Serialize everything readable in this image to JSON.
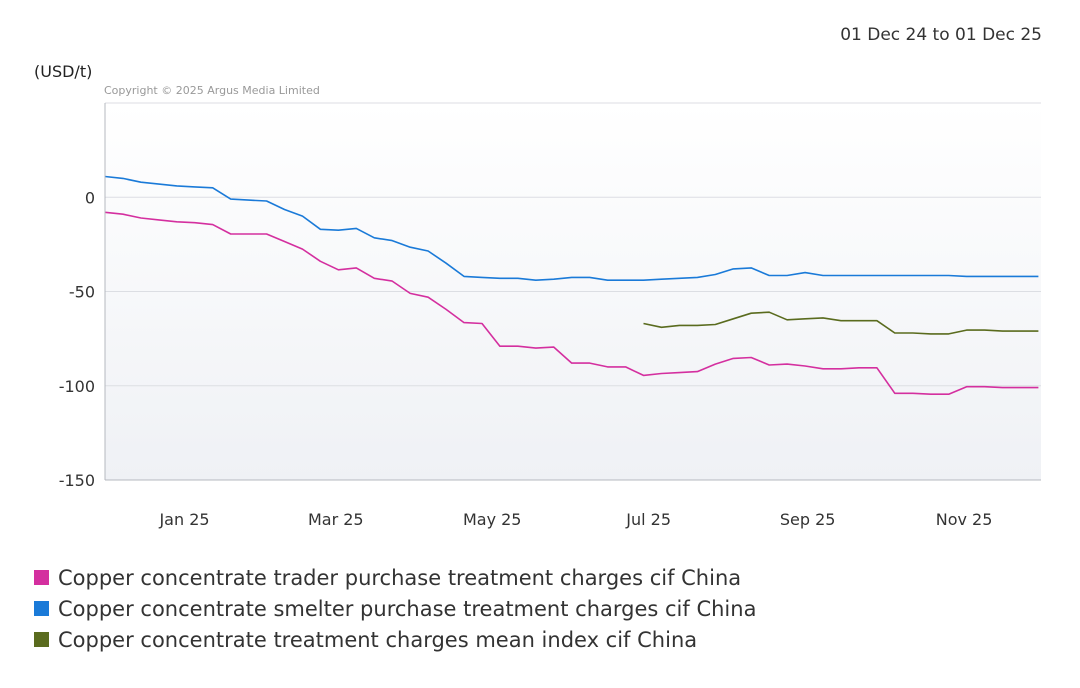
{
  "header": {
    "date_range": "01 Dec 24 to 01 Dec 25",
    "unit_label": "(USD/t)",
    "copyright": "Copyright © 2025 Argus Media Limited"
  },
  "chart_data": {
    "type": "line",
    "title": "",
    "xlabel": "",
    "ylabel": "(USD/t)",
    "ylim": [
      -150,
      50
    ],
    "yticks": [
      0,
      -50,
      -100,
      -150
    ],
    "ytick_labels": [
      "0",
      "-50",
      "-100",
      "-150"
    ],
    "xlim": [
      "2024-12-01",
      "2025-12-01"
    ],
    "xticks": [
      {
        "date": "2025-01-01",
        "label": "Jan 25"
      },
      {
        "date": "2025-03-01",
        "label": "Mar 25"
      },
      {
        "date": "2025-05-01",
        "label": "May 25"
      },
      {
        "date": "2025-07-01",
        "label": "Jul 25"
      },
      {
        "date": "2025-09-01",
        "label": "Sep 25"
      },
      {
        "date": "2025-11-01",
        "label": "Nov 25"
      }
    ],
    "grid": true,
    "legend_position": "bottom",
    "series": [
      {
        "name": "Copper concentrate trader purchase treatment charges cif China",
        "color": "#d42f9f",
        "x": [
          "2024-12-01",
          "2024-12-08",
          "2024-12-15",
          "2024-12-22",
          "2024-12-29",
          "2025-01-05",
          "2025-01-12",
          "2025-01-19",
          "2025-01-26",
          "2025-02-02",
          "2025-02-09",
          "2025-02-16",
          "2025-02-23",
          "2025-03-02",
          "2025-03-09",
          "2025-03-16",
          "2025-03-23",
          "2025-03-30",
          "2025-04-06",
          "2025-04-13",
          "2025-04-20",
          "2025-04-27",
          "2025-05-04",
          "2025-05-11",
          "2025-05-18",
          "2025-05-25",
          "2025-06-01",
          "2025-06-08",
          "2025-06-15",
          "2025-06-22",
          "2025-06-29",
          "2025-07-06",
          "2025-07-13",
          "2025-07-20",
          "2025-07-27",
          "2025-08-03",
          "2025-08-10",
          "2025-08-17",
          "2025-08-24",
          "2025-08-31",
          "2025-09-07",
          "2025-09-14",
          "2025-09-21",
          "2025-09-28",
          "2025-10-05",
          "2025-10-12",
          "2025-10-19",
          "2025-10-26",
          "2025-11-02",
          "2025-11-09",
          "2025-11-16",
          "2025-11-23",
          "2025-11-30"
        ],
        "values": [
          -8,
          -9,
          -11,
          -12,
          -13,
          -13.5,
          -14.5,
          -19.5,
          -19.5,
          -19.5,
          -23.5,
          -27.5,
          -34,
          -38.5,
          -37.5,
          -43,
          -44.5,
          -51,
          -53,
          -59.5,
          -66.5,
          -67,
          -79,
          -79,
          -80,
          -79.5,
          -88,
          -88,
          -90,
          -90,
          -94.5,
          -93.5,
          -93,
          -92.5,
          -88.5,
          -85.5,
          -85,
          -89,
          -88.5,
          -89.5,
          -91,
          -91,
          -90.5,
          -90.5,
          -104,
          -104,
          -104.5,
          -104.5,
          -100.5,
          -100.5,
          -101,
          -101,
          -101
        ]
      },
      {
        "name": "Copper concentrate smelter purchase treatment charges cif China",
        "color": "#1a7ad8",
        "x": [
          "2024-12-01",
          "2024-12-08",
          "2024-12-15",
          "2024-12-22",
          "2024-12-29",
          "2025-01-05",
          "2025-01-12",
          "2025-01-19",
          "2025-01-26",
          "2025-02-02",
          "2025-02-09",
          "2025-02-16",
          "2025-02-23",
          "2025-03-02",
          "2025-03-09",
          "2025-03-16",
          "2025-03-23",
          "2025-03-30",
          "2025-04-06",
          "2025-04-13",
          "2025-04-20",
          "2025-04-27",
          "2025-05-04",
          "2025-05-11",
          "2025-05-18",
          "2025-05-25",
          "2025-06-01",
          "2025-06-08",
          "2025-06-15",
          "2025-06-22",
          "2025-06-29",
          "2025-07-06",
          "2025-07-13",
          "2025-07-20",
          "2025-07-27",
          "2025-08-03",
          "2025-08-10",
          "2025-08-17",
          "2025-08-24",
          "2025-08-31",
          "2025-09-07",
          "2025-09-14",
          "2025-09-21",
          "2025-09-28",
          "2025-10-05",
          "2025-10-12",
          "2025-10-19",
          "2025-10-26",
          "2025-11-02",
          "2025-11-09",
          "2025-11-16",
          "2025-11-23",
          "2025-11-30"
        ],
        "values": [
          11,
          10,
          8,
          7,
          6,
          5.5,
          5,
          -1,
          -1.5,
          -2,
          -6.5,
          -10,
          -17,
          -17.5,
          -16.5,
          -21.5,
          -23,
          -26.5,
          -28.5,
          -35,
          -42,
          -42.5,
          -43,
          -43,
          -44,
          -43.5,
          -42.5,
          -42.5,
          -44,
          -44,
          -44,
          -43.5,
          -43,
          -42.5,
          -41,
          -38,
          -37.5,
          -41.5,
          -41.5,
          -40,
          -41.5,
          -41.5,
          -41.5,
          -41.5,
          -41.5,
          -41.5,
          -41.5,
          -41.5,
          -42,
          -42,
          -42,
          -42,
          -42
        ]
      },
      {
        "name": "Copper concentrate treatment charges mean index cif China",
        "color": "#5a6b1e",
        "x": [
          "2025-06-29",
          "2025-07-06",
          "2025-07-13",
          "2025-07-20",
          "2025-07-27",
          "2025-08-03",
          "2025-08-10",
          "2025-08-17",
          "2025-08-24",
          "2025-08-31",
          "2025-09-07",
          "2025-09-14",
          "2025-09-21",
          "2025-09-28",
          "2025-10-05",
          "2025-10-12",
          "2025-10-19",
          "2025-10-26",
          "2025-11-02",
          "2025-11-09",
          "2025-11-16",
          "2025-11-23",
          "2025-11-30"
        ],
        "values": [
          -67,
          -69,
          -68,
          -68,
          -67.5,
          -64.5,
          -61.5,
          -61,
          -65,
          -64.5,
          -64,
          -65.5,
          -65.5,
          -65.5,
          -72,
          -72,
          -72.5,
          -72.5,
          -70.5,
          -70.5,
          -71,
          -71,
          -71
        ]
      }
    ]
  }
}
